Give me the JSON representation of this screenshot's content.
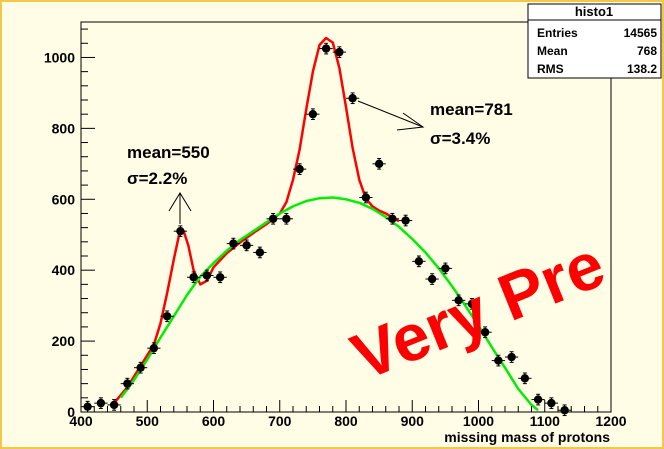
{
  "canvas": {
    "background": "#fffde6",
    "border_color": "#f3c84a"
  },
  "stats_box": {
    "title": "histo1",
    "rows": [
      {
        "label": "Entries",
        "value": "14565"
      },
      {
        "label": "Mean",
        "value": "768"
      },
      {
        "label": "RMS",
        "value": "138.2"
      }
    ]
  },
  "annotations": {
    "left_peak": {
      "mean": "mean=550",
      "sigma": "σ=2.2%"
    },
    "right_peak": {
      "mean": "mean=781",
      "sigma": "σ=3.4%"
    },
    "watermark": "Very Pre"
  },
  "chart_data": {
    "type": "scatter",
    "xlabel": "missing mass of protons",
    "xlim": [
      400,
      1200
    ],
    "ylim": [
      0,
      1100
    ],
    "xticks": [
      400,
      500,
      600,
      700,
      800,
      900,
      1000,
      1100,
      1200
    ],
    "yticks": [
      0,
      200,
      400,
      600,
      800,
      1000
    ],
    "grid": false,
    "colors": {
      "total_fit": "#ff0000",
      "background_fit": "#00ee00",
      "points": "#000000"
    },
    "series": [
      {
        "points": [
          [
            410,
            15
          ],
          [
            430,
            25
          ],
          [
            450,
            20
          ],
          [
            470,
            80
          ],
          [
            490,
            125
          ],
          [
            510,
            180
          ],
          [
            530,
            270
          ],
          [
            550,
            510
          ],
          [
            570,
            380
          ],
          [
            590,
            385
          ],
          [
            610,
            380
          ],
          [
            630,
            475
          ],
          [
            650,
            470
          ],
          [
            670,
            450
          ],
          [
            690,
            545
          ],
          [
            710,
            545
          ],
          [
            730,
            685
          ],
          [
            750,
            840
          ],
          [
            770,
            1025
          ],
          [
            790,
            1015
          ],
          [
            810,
            885
          ],
          [
            830,
            605
          ],
          [
            850,
            700
          ],
          [
            870,
            545
          ],
          [
            890,
            540
          ],
          [
            910,
            425
          ],
          [
            930,
            375
          ],
          [
            950,
            405
          ],
          [
            970,
            315
          ],
          [
            990,
            305
          ],
          [
            1010,
            225
          ],
          [
            1030,
            145
          ],
          [
            1050,
            155
          ],
          [
            1070,
            95
          ],
          [
            1090,
            35
          ],
          [
            1110,
            25
          ],
          [
            1130,
            5
          ]
        ],
        "yerr": 15,
        "xerr": 10
      },
      {
        "x": [
          460,
          480,
          500,
          520,
          540,
          560,
          580,
          600,
          620,
          640,
          660,
          680,
          700,
          720,
          740,
          760,
          780,
          800,
          820,
          840,
          860,
          880,
          900,
          920,
          940,
          960,
          980,
          1000,
          1020,
          1040,
          1060,
          1080,
          1090
        ],
        "y": [
          40,
          90,
          148,
          210,
          270,
          330,
          382,
          420,
          455,
          485,
          510,
          535,
          560,
          580,
          595,
          603,
          605,
          600,
          590,
          573,
          550,
          522,
          488,
          450,
          405,
          355,
          300,
          243,
          183,
          125,
          65,
          20,
          5
        ]
      },
      {
        "x": [
          450,
          470,
          490,
          510,
          520,
          530,
          540,
          548,
          555,
          562,
          570,
          580,
          590,
          600,
          620,
          640,
          660,
          680,
          700,
          710,
          720,
          730,
          740,
          750,
          760,
          770,
          780,
          790,
          800,
          810,
          820,
          830,
          840,
          850,
          860,
          880
        ],
        "y": [
          25,
          70,
          130,
          190,
          250,
          335,
          430,
          500,
          510,
          470,
          400,
          360,
          370,
          408,
          448,
          478,
          505,
          530,
          560,
          592,
          655,
          740,
          855,
          960,
          1035,
          1055,
          1042,
          970,
          860,
          745,
          655,
          602,
          580,
          568,
          560,
          538
        ]
      }
    ]
  }
}
